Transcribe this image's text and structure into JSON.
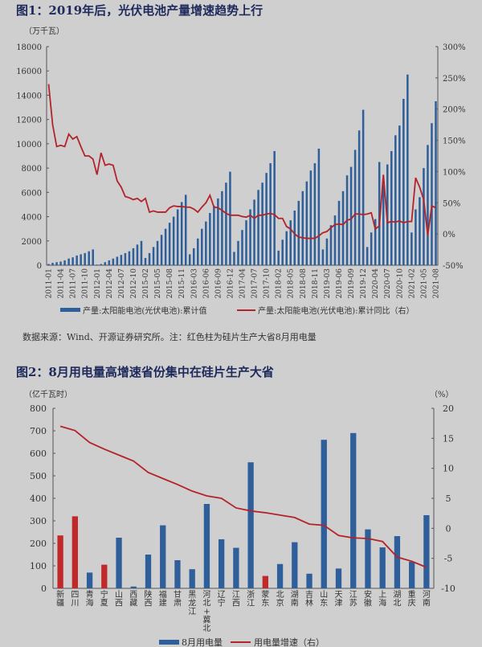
{
  "figure1": {
    "title": "图1：2019年后，光伏电池产量增速趋势上行",
    "note": "数据来源：Wind、开源证券研究所。注：红色柱为硅片生产大省8月用电量"
  },
  "figure2": {
    "title": "图2：8月用电量高增速省份集中在硅片生产大省"
  },
  "colors": {
    "bar": "#2e5f9a",
    "highlight_bar": "#c0282a",
    "line": "#b3232a",
    "background": "#cfcfcf"
  },
  "chart_data": [
    {
      "type": "bar+line",
      "ylabel": "（万千瓦）",
      "ylim": [
        0,
        18000
      ],
      "yticks": [
        0,
        2000,
        4000,
        6000,
        8000,
        10000,
        12000,
        14000,
        16000,
        18000
      ],
      "y2lim": [
        -50,
        300
      ],
      "y2ticks": [
        "-50%",
        "0%",
        "50%",
        "100%",
        "150%",
        "200%",
        "250%",
        "300%"
      ],
      "y2values": [
        -50,
        0,
        50,
        100,
        150,
        200,
        250,
        300
      ],
      "xtick_labels": [
        "2011-01",
        "2011-04",
        "2011-07",
        "2011-10",
        "2012-01",
        "2012-04",
        "2012-07",
        "2012-10",
        "2015-02",
        "2015-05",
        "2015-08",
        "2015-11",
        "2016-03",
        "2016-06",
        "2016-09",
        "2016-12",
        "2017-04",
        "2017-07",
        "2017-10",
        "2018-02",
        "2018-05",
        "2018-08",
        "2018-11",
        "2019-03",
        "2019-06",
        "2019-09",
        "2019-12",
        "2020-04",
        "2020-07",
        "2020-10",
        "2021-02",
        "2021-05",
        "2021-08"
      ],
      "periods": [
        {
          "year": "2011",
          "months": [
            1,
            2,
            3,
            4,
            5,
            6,
            7,
            8,
            9,
            10,
            11,
            12
          ]
        },
        {
          "year": "2012",
          "months": [
            1,
            2,
            3,
            4,
            5,
            6,
            7,
            8,
            9,
            10,
            11,
            12
          ]
        },
        {
          "year": "2015",
          "months": [
            2,
            3,
            4,
            5,
            6,
            7,
            8,
            9,
            10,
            11,
            12
          ]
        },
        {
          "year": "2016",
          "months": [
            2,
            3,
            4,
            5,
            6,
            7,
            8,
            9,
            10,
            11,
            12
          ]
        },
        {
          "year": "2017",
          "months": [
            2,
            3,
            4,
            5,
            6,
            7,
            8,
            9,
            10,
            11,
            12
          ]
        },
        {
          "year": "2018",
          "months": [
            2,
            3,
            4,
            5,
            6,
            7,
            8,
            9,
            10,
            11,
            12
          ]
        },
        {
          "year": "2019",
          "months": [
            2,
            3,
            4,
            5,
            6,
            7,
            8,
            9,
            10,
            11,
            12
          ]
        },
        {
          "year": "2020",
          "months": [
            2,
            3,
            4,
            5,
            6,
            7,
            8,
            9,
            10,
            11,
            12
          ]
        },
        {
          "year": "2021",
          "months": [
            2,
            3,
            4,
            5,
            6,
            7,
            8
          ]
        }
      ],
      "series": [
        {
          "name": "产量:太阳能电池(光伏电池):累计值",
          "type": "bar",
          "axis": "left",
          "values": [
            100,
            200,
            250,
            300,
            400,
            550,
            650,
            800,
            900,
            1000,
            1150,
            1300,
            50,
            100,
            250,
            400,
            550,
            700,
            850,
            1000,
            1150,
            1400,
            1700,
            2000,
            600,
            1000,
            1500,
            2000,
            2500,
            3000,
            3500,
            4000,
            4600,
            5200,
            5800,
            900,
            1400,
            2200,
            3000,
            3600,
            4300,
            4900,
            5500,
            6100,
            6800,
            7700,
            1100,
            2000,
            2900,
            3700,
            4600,
            5400,
            6200,
            6800,
            7600,
            8400,
            9400,
            1200,
            2100,
            2800,
            3700,
            4500,
            5300,
            6100,
            6900,
            7800,
            8400,
            9600,
            1300,
            2200,
            3300,
            4100,
            5300,
            6100,
            7400,
            8100,
            9500,
            11100,
            12800,
            1500,
            2700,
            3800,
            8500,
            6600,
            8300,
            9400,
            10700,
            11500,
            13700,
            15700,
            2700,
            4600,
            5600,
            8000,
            9900,
            11700,
            13500
          ]
        },
        {
          "name": "产量:太阳能电池(光伏电池):累计同比（右）",
          "type": "line",
          "axis": "right",
          "values": [
            240,
            175,
            140,
            142,
            140,
            160,
            152,
            156,
            140,
            125,
            125,
            120,
            95,
            130,
            110,
            112,
            110,
            85,
            75,
            60,
            58,
            55,
            57,
            52,
            57,
            35,
            37,
            35,
            35,
            35,
            42,
            45,
            44,
            44,
            43,
            43,
            40,
            35,
            43,
            50,
            62,
            43,
            42,
            38,
            33,
            30,
            30,
            30,
            28,
            27,
            30,
            25,
            30,
            30,
            32,
            33,
            31,
            25,
            25,
            12,
            8,
            0,
            -5,
            -6,
            -7,
            -7,
            -7,
            -3,
            2,
            4,
            10,
            15,
            16,
            15,
            22,
            24,
            32,
            32,
            31,
            32,
            34,
            8,
            13,
            95,
            18,
            20,
            19,
            21,
            18,
            20,
            20,
            90,
            75,
            55,
            -2,
            45,
            42
          ]
        }
      ]
    },
    {
      "type": "bar+line",
      "ylabel": "（亿千瓦时）",
      "y2label": "（%）",
      "ylim": [
        0,
        800
      ],
      "yticks": [
        0,
        100,
        200,
        300,
        400,
        500,
        600,
        700,
        800
      ],
      "y2lim": [
        -10,
        20
      ],
      "y2ticks": [
        -10,
        -5,
        0,
        5,
        10,
        15,
        20
      ],
      "categories": [
        "新疆",
        "四川",
        "青海",
        "宁夏",
        "山西",
        "西藏",
        "陕西",
        "福建",
        "甘肃",
        "黑龙江",
        "河北+冀北",
        "辽宁",
        "江西",
        "浙江",
        "蒙东",
        "北京",
        "湖南",
        "吉林",
        "山东",
        "天津",
        "江苏",
        "安徽",
        "上海",
        "湖北",
        "重庆",
        "河南"
      ],
      "highlighted": [
        "新疆",
        "四川",
        "宁夏",
        "蒙东"
      ],
      "series": [
        {
          "name": "8月用电量",
          "type": "bar",
          "axis": "left",
          "values": [
            235,
            320,
            70,
            105,
            225,
            8,
            150,
            280,
            125,
            85,
            375,
            218,
            180,
            560,
            55,
            108,
            205,
            65,
            660,
            88,
            690,
            262,
            182,
            232,
            118,
            325
          ]
        },
        {
          "name": "用电量增速（右）",
          "type": "line",
          "axis": "right",
          "values": [
            17,
            16.3,
            14.3,
            13.2,
            12.2,
            11.2,
            9.3,
            8.3,
            7.3,
            6.2,
            5.4,
            5.0,
            3.4,
            2.9,
            2.6,
            2.2,
            1.8,
            0.7,
            0.5,
            -1.2,
            -1.6,
            -1.7,
            -2.2,
            -4.8,
            -5.5,
            -6.5
          ]
        }
      ]
    }
  ]
}
